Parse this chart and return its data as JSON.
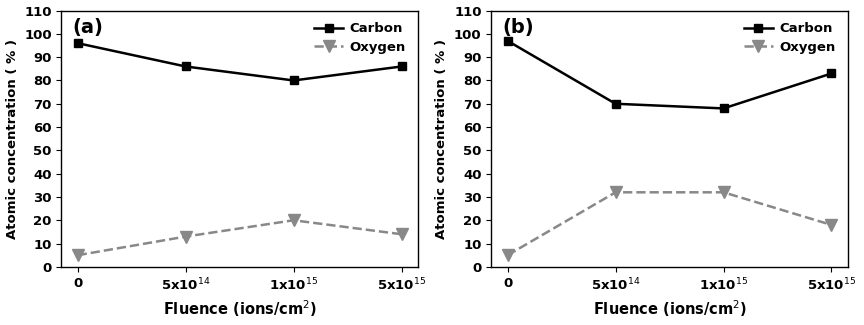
{
  "panel_a": {
    "label": "(a)",
    "carbon": [
      96,
      86,
      80,
      86
    ],
    "oxygen": [
      5,
      13,
      20,
      14
    ],
    "carbon_color": "#000000",
    "oxygen_color": "#888888"
  },
  "panel_b": {
    "label": "(b)",
    "carbon": [
      97,
      70,
      68,
      83
    ],
    "oxygen": [
      5,
      32,
      32,
      18
    ],
    "carbon_color": "#000000",
    "oxygen_color": "#888888"
  },
  "x_labels": [
    "0",
    "5x10$^{14}$",
    "1x10$^{15}$",
    "5x10$^{15}$"
  ],
  "x_positions": [
    0,
    1,
    2,
    3
  ],
  "xlabel": "Fluence (ions/cm$^{2}$)",
  "ylabel": "Atomic concentration ( % )",
  "ylim": [
    0,
    110
  ],
  "yticks": [
    0,
    10,
    20,
    30,
    40,
    50,
    60,
    70,
    80,
    90,
    100,
    110
  ],
  "legend_carbon": "Carbon",
  "legend_oxygen": "Oxygen",
  "figsize": [
    8.64,
    3.25
  ],
  "dpi": 100
}
